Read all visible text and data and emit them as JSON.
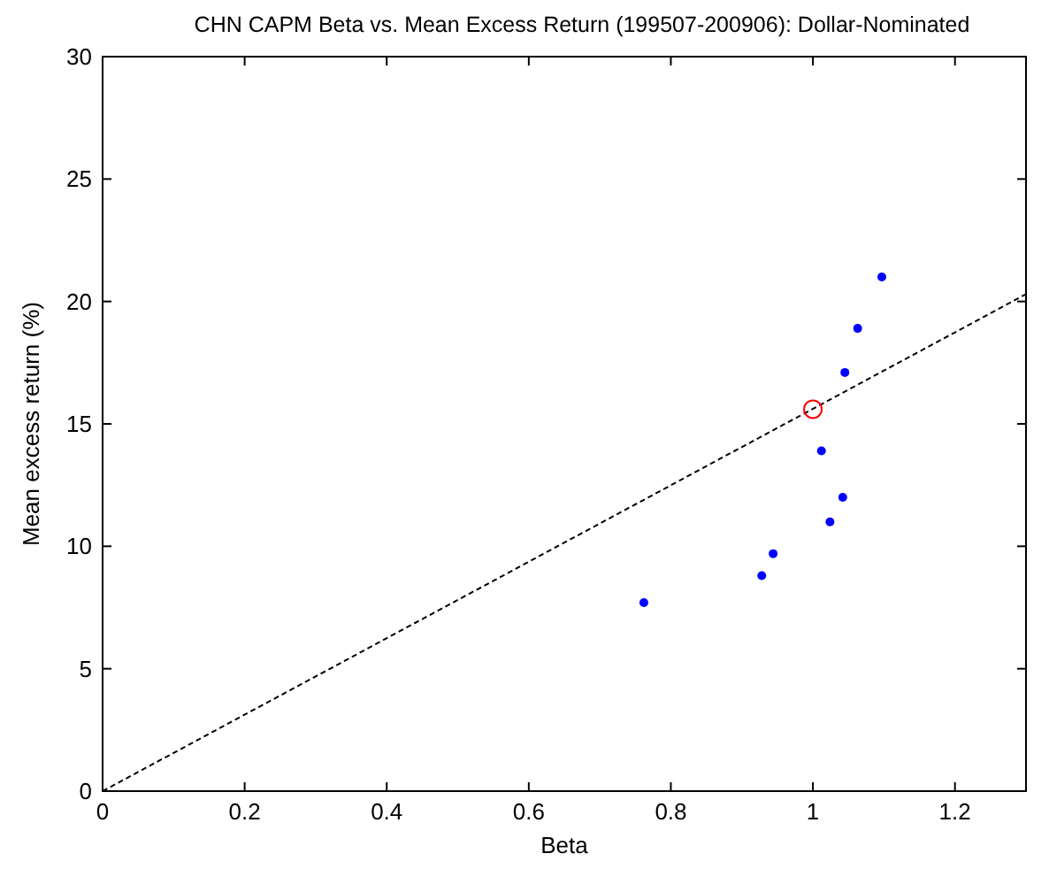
{
  "chart_data": {
    "type": "scatter",
    "title": "CHN CAPM Beta vs. Mean Excess Return (199507-200906): Dollar-Nominated",
    "xlabel": "Beta",
    "ylabel": "Mean excess return (%)",
    "xlim": [
      0,
      1.3
    ],
    "xticks": [
      0,
      0.2,
      0.4,
      0.6,
      0.8,
      1,
      1.2
    ],
    "ylim": [
      0,
      30
    ],
    "yticks": [
      0,
      5,
      10,
      15,
      20,
      25,
      30
    ],
    "grid": false,
    "series": [
      {
        "color": "#0000ff",
        "marker": "circle",
        "x": [
          0.762,
          0.928,
          0.944,
          1.012,
          1.024,
          1.042,
          1.045,
          1.063,
          1.097
        ],
        "values": [
          7.7,
          8.8,
          9.7,
          13.9,
          11.0,
          12.0,
          17.1,
          18.9,
          21.0
        ]
      },
      {
        "type": "line",
        "color": "#000000",
        "line_style": "dashed",
        "x": [
          0,
          1.3
        ],
        "values": [
          0,
          20.3
        ]
      },
      {
        "color": "#ff0000",
        "marker": "circle",
        "x": [
          1.0
        ],
        "values": [
          15.6
        ]
      }
    ]
  }
}
